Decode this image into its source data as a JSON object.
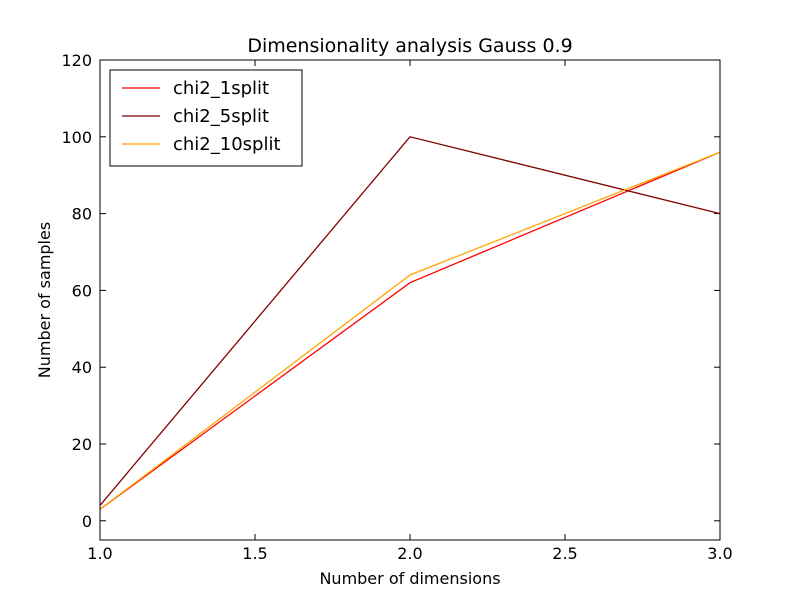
{
  "chart_data": {
    "type": "line",
    "title": "Dimensionality analysis Gauss 0.9",
    "xlabel": "Number of dimensions",
    "ylabel": "Number of samples",
    "xlim": [
      1.0,
      3.0
    ],
    "ylim": [
      -5,
      120
    ],
    "x_ticks": [
      "1.0",
      "1.5",
      "2.0",
      "2.5",
      "3.0"
    ],
    "y_ticks": [
      "0",
      "20",
      "40",
      "60",
      "80",
      "100",
      "120"
    ],
    "grid": false,
    "legend_position": "top-left",
    "x": [
      1.0,
      2.0,
      3.0
    ],
    "series": [
      {
        "name": "chi2_1split",
        "color": "#ff0000",
        "values": [
          3,
          62,
          96
        ]
      },
      {
        "name": "chi2_5split",
        "color": "#800000",
        "values": [
          4,
          100,
          80
        ]
      },
      {
        "name": "chi2_10split",
        "color": "#ffa500",
        "values": [
          3,
          64,
          96
        ]
      }
    ]
  }
}
